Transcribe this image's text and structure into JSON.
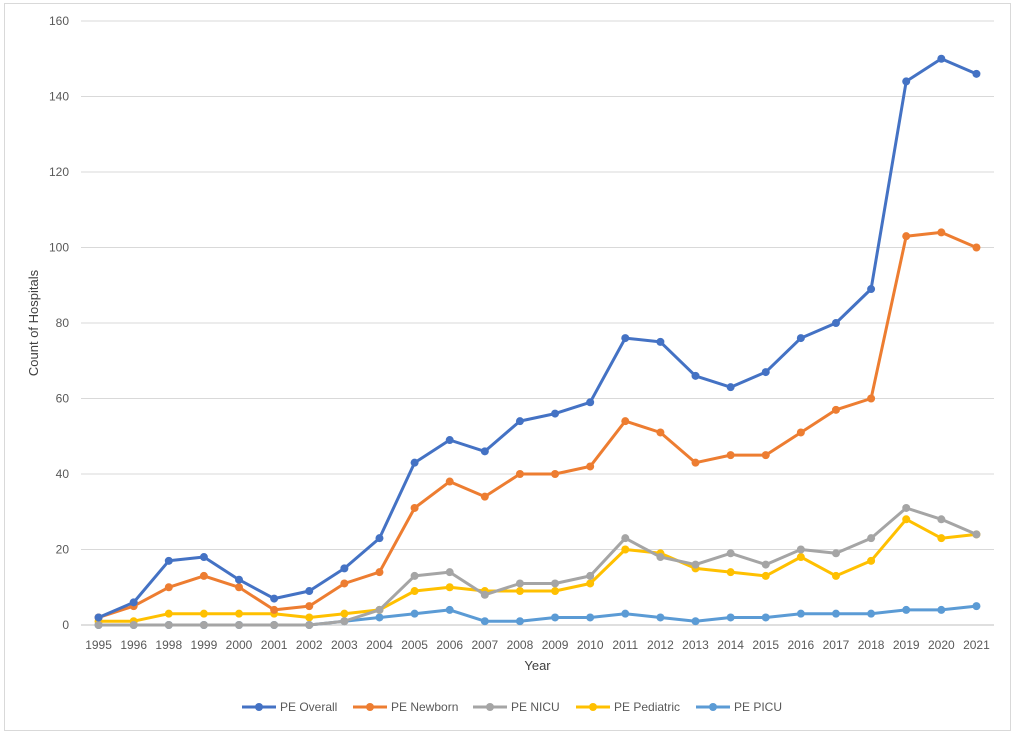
{
  "chart_data": {
    "type": "line",
    "title": "",
    "xlabel": "Year",
    "ylabel": "Count of Hospitals",
    "ylim": [
      0,
      160
    ],
    "yticks": [
      0,
      20,
      40,
      60,
      80,
      100,
      120,
      140,
      160
    ],
    "grid": "horizontal",
    "legend_position": "bottom",
    "categories": [
      "1995",
      "1996",
      "1998",
      "1999",
      "2000",
      "2001",
      "2002",
      "2003",
      "2004",
      "2005",
      "2006",
      "2007",
      "2008",
      "2009",
      "2010",
      "2011",
      "2012",
      "2013",
      "2014",
      "2015",
      "2016",
      "2017",
      "2018",
      "2019",
      "2020",
      "2021"
    ],
    "series": [
      {
        "name": "PE Overall",
        "color": "#4472c4",
        "values": [
          2,
          6,
          17,
          18,
          12,
          7,
          9,
          15,
          23,
          43,
          49,
          46,
          54,
          56,
          59,
          76,
          75,
          66,
          63,
          67,
          76,
          80,
          89,
          144,
          150,
          146
        ]
      },
      {
        "name": "PE Newborn",
        "color": "#ed7d31",
        "values": [
          2,
          5,
          10,
          13,
          10,
          4,
          5,
          11,
          14,
          31,
          38,
          34,
          40,
          40,
          42,
          54,
          51,
          43,
          45,
          45,
          51,
          57,
          60,
          103,
          104,
          100
        ]
      },
      {
        "name": "PE NICU",
        "color": "#a5a5a5",
        "values": [
          0,
          0,
          0,
          0,
          0,
          0,
          0,
          1,
          4,
          13,
          14,
          8,
          11,
          11,
          13,
          23,
          18,
          16,
          19,
          16,
          20,
          19,
          23,
          31,
          28,
          24
        ]
      },
      {
        "name": "PE Pediatric",
        "color": "#ffc000",
        "values": [
          1,
          1,
          3,
          3,
          3,
          3,
          2,
          3,
          4,
          9,
          10,
          9,
          9,
          9,
          11,
          20,
          19,
          15,
          14,
          13,
          18,
          13,
          17,
          28,
          23,
          24
        ]
      },
      {
        "name": "PE PICU",
        "color": "#5b9bd5",
        "values": [
          0,
          0,
          0,
          0,
          0,
          0,
          0,
          1,
          2,
          3,
          4,
          1,
          1,
          2,
          2,
          3,
          2,
          1,
          2,
          2,
          3,
          3,
          3,
          4,
          4,
          5
        ]
      }
    ]
  }
}
